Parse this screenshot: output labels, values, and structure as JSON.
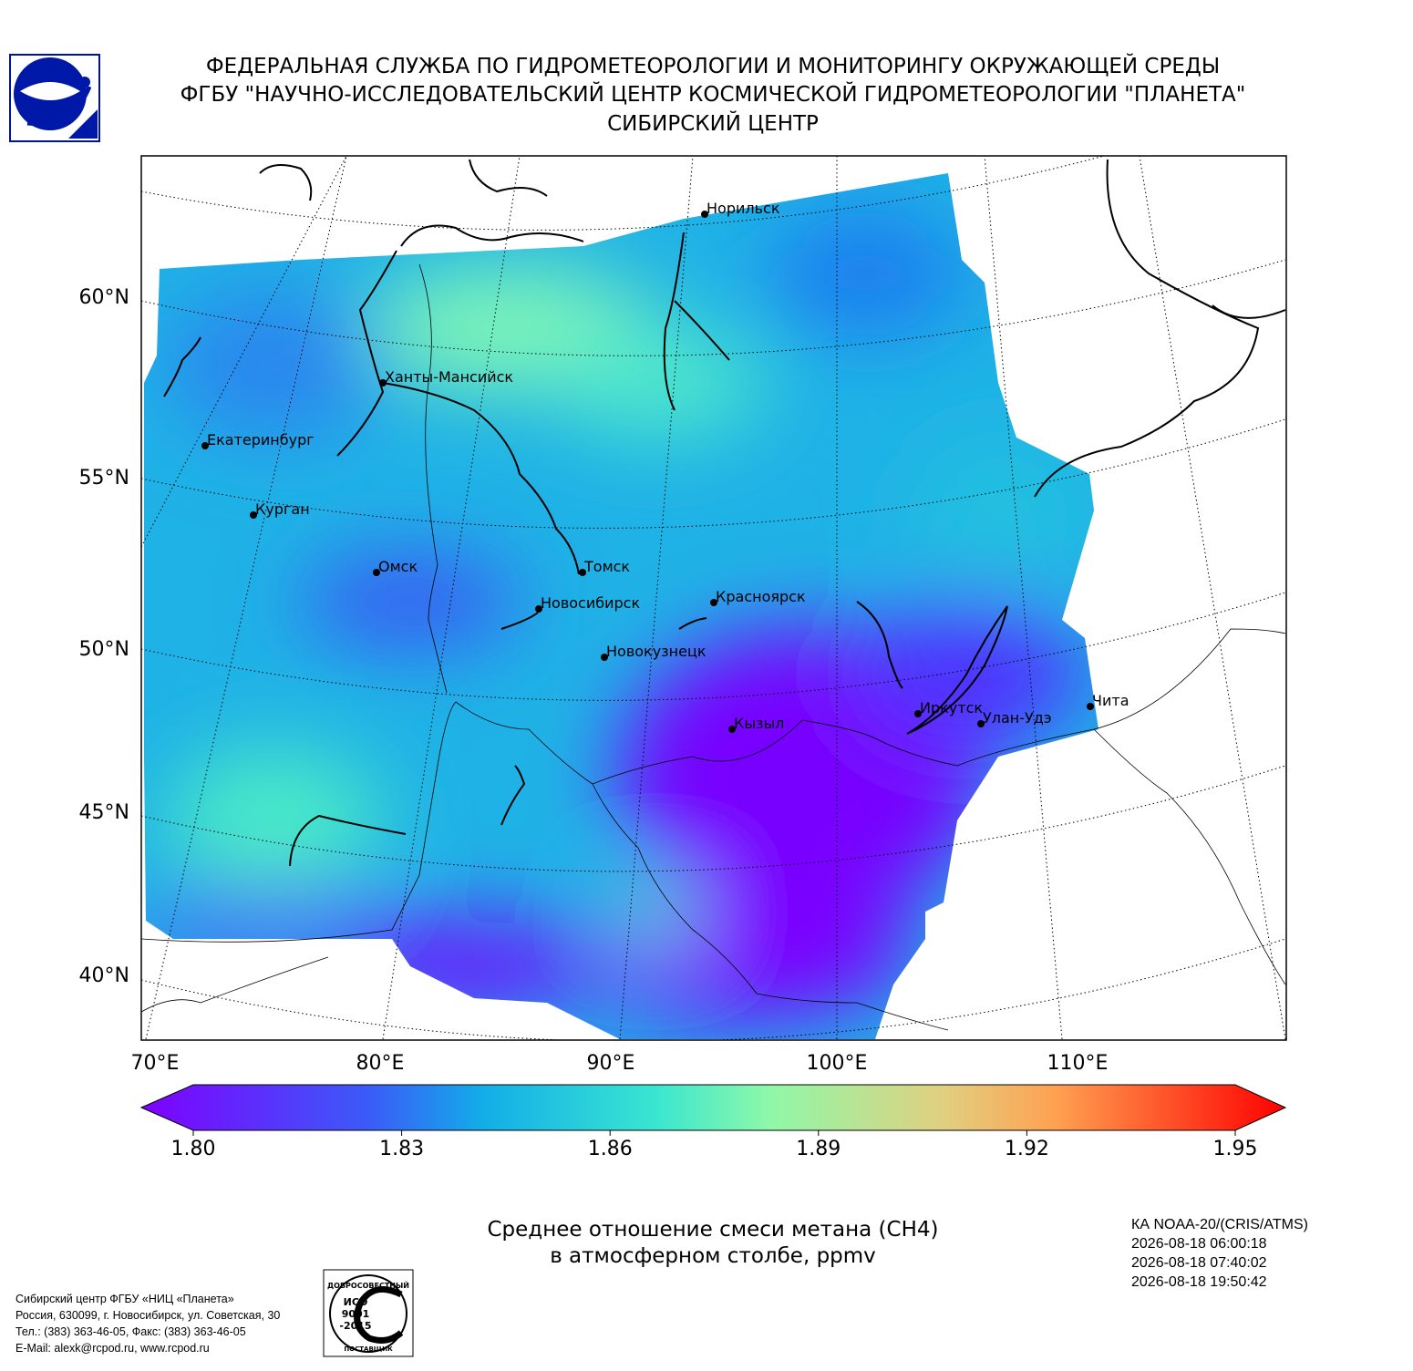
{
  "header": {
    "lines": [
      "ФЕДЕРАЛЬНАЯ СЛУЖБА ПО ГИДРОМЕТЕОРОЛОГИИ И МОНИТОРИНГУ ОКРУЖАЮЩЕЙ СРЕДЫ",
      "ФГБУ \"НАУЧНО-ИССЛЕДОВАТЕЛЬСКИЙ ЦЕНТР КОСМИЧЕСКОЙ ГИДРОМЕТЕОРОЛОГИИ \"ПЛАНЕТА\"",
      "СИБИРСКИЙ ЦЕНТР"
    ]
  },
  "map": {
    "lat_labels": [
      "60°N",
      "55°N",
      "50°N",
      "45°N",
      "40°N"
    ],
    "lon_labels": [
      "70°E",
      "80°E",
      "90°E",
      "100°E",
      "110°E"
    ],
    "cities": [
      "Норильск",
      "Ханты-Мансийск",
      "Екатеринбург",
      "Курган",
      "Омск",
      "Томск",
      "Новосибирск",
      "Красноярск",
      "Новокузнецк",
      "Иркутск",
      "Улан-Удэ",
      "Чита",
      "Кызыл"
    ]
  },
  "colorbar": {
    "lim": [
      1.8,
      1.95
    ],
    "ticks": [
      {
        "value": 1.8,
        "label": "1.80"
      },
      {
        "value": 1.83,
        "label": "1.83"
      },
      {
        "value": 1.86,
        "label": "1.86"
      },
      {
        "value": 1.89,
        "label": "1.89"
      },
      {
        "value": 1.92,
        "label": "1.92"
      },
      {
        "value": 1.95,
        "label": "1.95"
      }
    ]
  },
  "caption": {
    "lines": [
      "Среднее отношение смеси метана (CH4)",
      "в атмосферном столбе, ppmv"
    ]
  },
  "satellite": {
    "lines": [
      "КА NOAA-20/(CRIS/ATMS)",
      "2026-08-18 06:00:18",
      "2026-08-18 07:40:02",
      "2026-08-18 19:50:42"
    ]
  },
  "footer": {
    "lines": [
      "Сибирский центр ФГБУ «НИЦ «Планета»",
      "Россия, 630099, г. Новосибирск, ул. Советская, 30",
      "Тел.: (383) 363-46-05, Факс: (383) 363-46-05",
      "E-Mail: alexk@rcpod.ru, www.rcpod.ru"
    ]
  },
  "iso_logo": {
    "top": "ДОБРОСОВЕСТНЫЙ",
    "lines": [
      "ИСО",
      "9001",
      "-2015"
    ],
    "bottom": "ПОСТАВЩИК"
  }
}
